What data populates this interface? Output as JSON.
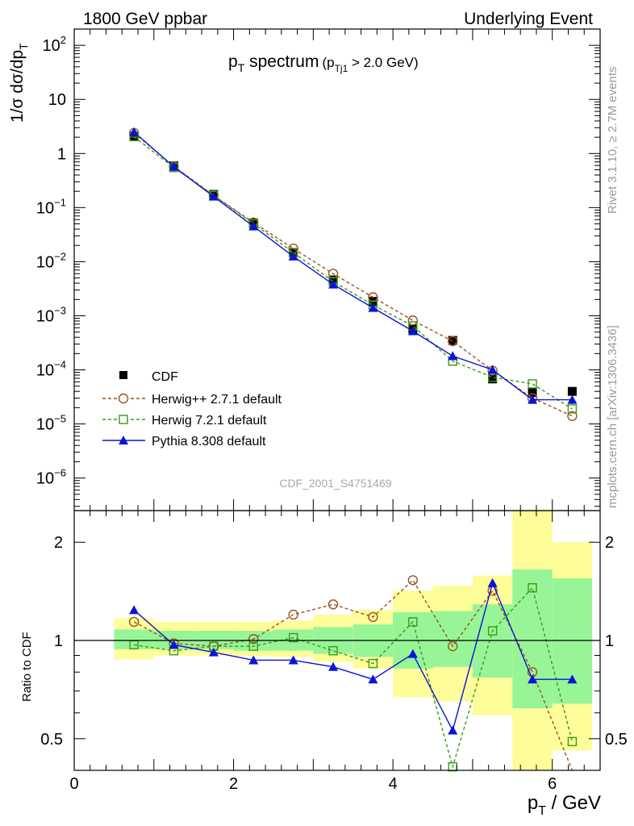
{
  "header": {
    "left": "1800 GeV ppbar",
    "right": "Underlying Event"
  },
  "side_labels": {
    "rivet": "Rivet 3.1.10, ≥ 2.7M events",
    "mcplots": "mcplots.cern.ch [arXiv:1306.3436]"
  },
  "analysis_id": "CDF_2001_S4751469",
  "colors": {
    "cdf": "#000000",
    "herwigpp": "#a0521a",
    "herwig7": "#3a9a1a",
    "pythia": "#0a14d8",
    "band_yellow": "#fdfd99",
    "band_green": "#97f597"
  },
  "chart_data": [
    {
      "type": "scatter",
      "title_main": "p",
      "title_main_sub": "T",
      "title_main_rest": " spectrum",
      "title_cut_pre": "(p",
      "title_cut_sub": "Tj1",
      "title_cut_post": " > 2.0 GeV)",
      "ylabel_main": "1/σ dσ/dp",
      "ylabel_sub": "T",
      "yscale": "log",
      "ylim": [
        2.5e-07,
        200
      ],
      "xlim": [
        0,
        6.6
      ],
      "yticks": [
        {
          "v": 100,
          "m": "10",
          "e": "2"
        },
        {
          "v": 10,
          "m": "10",
          "e": ""
        },
        {
          "v": 1,
          "m": "1",
          "e": ""
        },
        {
          "v": 0.1,
          "m": "10",
          "e": "−1"
        },
        {
          "v": 0.01,
          "m": "10",
          "e": "−2"
        },
        {
          "v": 0.001,
          "m": "10",
          "e": "−3"
        },
        {
          "v": 0.0001,
          "m": "10",
          "e": "−4"
        },
        {
          "v": 1e-05,
          "m": "10",
          "e": "−5"
        },
        {
          "v": 1e-06,
          "m": "10",
          "e": "−6"
        }
      ],
      "legend_position": "lower-left",
      "series": [
        {
          "name": "CDF",
          "marker": "square-filled",
          "x": [
            0.75,
            1.25,
            1.75,
            2.25,
            2.75,
            3.25,
            3.75,
            4.25,
            4.75,
            5.25,
            5.75,
            6.25
          ],
          "y": [
            2.1,
            0.59,
            0.175,
            0.052,
            0.0145,
            0.0046,
            0.00185,
            0.00057,
            0.00035,
            6.8e-05,
            3.8e-05,
            4e-05
          ]
        },
        {
          "name": "Herwig++ 2.7.1 default",
          "marker": "circle-open",
          "dashed": true,
          "x": [
            0.75,
            1.25,
            1.75,
            2.25,
            2.75,
            3.25,
            3.75,
            4.25,
            4.75,
            5.25,
            5.75,
            6.25
          ],
          "y": [
            2.4,
            0.58,
            0.168,
            0.053,
            0.0175,
            0.006,
            0.0022,
            0.00082,
            0.00034,
            9.7e-05,
            3e-05,
            1.4e-05
          ]
        },
        {
          "name": "Herwig 7.2.1 default",
          "marker": "square-open",
          "dashed": true,
          "x": [
            0.75,
            1.25,
            1.75,
            2.25,
            2.75,
            3.25,
            3.75,
            4.25,
            4.75,
            5.25,
            5.75,
            6.25
          ],
          "y": [
            2.05,
            0.55,
            0.168,
            0.05,
            0.0148,
            0.0043,
            0.00158,
            0.00065,
            0.000145,
            7.3e-05,
            5.5e-05,
            1.9e-05
          ]
        },
        {
          "name": "Pythia 8.308 default",
          "marker": "triangle-filled",
          "x": [
            0.75,
            1.25,
            1.75,
            2.25,
            2.75,
            3.25,
            3.75,
            4.25,
            4.75,
            5.25,
            5.75,
            6.25
          ],
          "y": [
            2.5,
            0.57,
            0.16,
            0.045,
            0.0125,
            0.0038,
            0.0014,
            0.00052,
            0.00018,
            0.0001,
            2.8e-05,
            2.8e-05
          ]
        }
      ]
    },
    {
      "type": "scatter",
      "ylabel": "Ratio to CDF",
      "xlabel_main": "p",
      "xlabel_sub": "T",
      "xlabel_rest": " / GeV",
      "yscale": "log",
      "ylim": [
        0.4,
        2.5
      ],
      "xlim": [
        0,
        6.6
      ],
      "yticks": [
        {
          "v": 0.5,
          "label": "0.5"
        },
        {
          "v": 1,
          "label": "1"
        },
        {
          "v": 2,
          "label": "2"
        }
      ],
      "xticks": [
        {
          "v": 0,
          "label": "0"
        },
        {
          "v": 2,
          "label": "2"
        },
        {
          "v": 4,
          "label": "4"
        },
        {
          "v": 6,
          "label": "6"
        }
      ],
      "bands": {
        "edges": [
          0.5,
          1.0,
          1.5,
          2.0,
          2.5,
          3.0,
          3.5,
          4.0,
          4.5,
          5.0,
          5.5,
          6.0,
          6.5
        ],
        "yellow_lo": [
          0.875,
          0.9,
          0.9,
          0.895,
          0.89,
          0.86,
          0.82,
          0.67,
          0.65,
          0.59,
          0.4,
          0.46
        ],
        "yellow_hi": [
          1.17,
          1.14,
          1.14,
          1.14,
          1.15,
          1.2,
          1.24,
          1.42,
          1.47,
          1.58,
          2.7,
          2.0
        ],
        "green_lo": [
          0.94,
          0.94,
          0.94,
          0.93,
          0.93,
          0.91,
          0.89,
          0.82,
          0.83,
          0.77,
          0.62,
          0.64
        ],
        "green_hi": [
          1.08,
          1.07,
          1.07,
          1.07,
          1.08,
          1.1,
          1.12,
          1.22,
          1.23,
          1.29,
          1.65,
          1.55
        ]
      },
      "series": [
        {
          "name": "Herwig++ 2.7.1 default",
          "marker": "circle-open",
          "dashed": true,
          "x": [
            0.75,
            1.25,
            1.75,
            2.25,
            2.75,
            3.25,
            3.75,
            4.25,
            4.75,
            5.25,
            5.75,
            6.25
          ],
          "y": [
            1.14,
            0.98,
            0.96,
            1.01,
            1.2,
            1.29,
            1.18,
            1.53,
            0.96,
            1.42,
            0.8,
            0.37
          ]
        },
        {
          "name": "Herwig 7.2.1 default",
          "marker": "square-open",
          "dashed": true,
          "x": [
            0.75,
            1.25,
            1.75,
            2.25,
            2.75,
            3.25,
            3.75,
            4.25,
            4.75,
            5.25,
            5.75,
            6.25
          ],
          "y": [
            0.97,
            0.93,
            0.96,
            0.96,
            1.02,
            0.93,
            0.85,
            1.14,
            0.41,
            1.07,
            1.45,
            0.49
          ]
        },
        {
          "name": "Pythia 8.308 default",
          "marker": "triangle-filled",
          "x": [
            0.75,
            1.25,
            1.75,
            2.25,
            2.75,
            3.25,
            3.75,
            4.25,
            4.75,
            5.25,
            5.75,
            6.25
          ],
          "y": [
            1.24,
            0.97,
            0.92,
            0.87,
            0.87,
            0.83,
            0.76,
            0.91,
            0.53,
            1.5,
            0.76,
            0.76
          ]
        }
      ]
    }
  ]
}
